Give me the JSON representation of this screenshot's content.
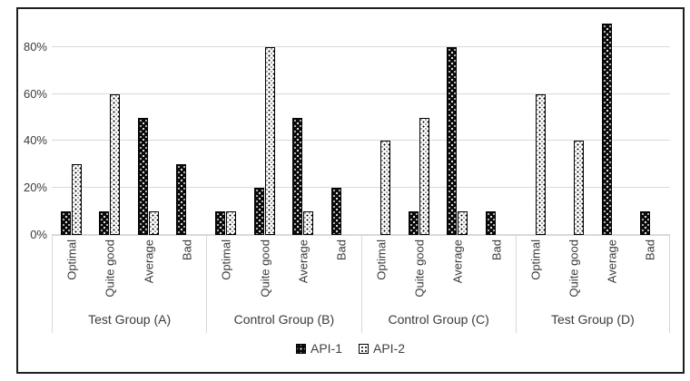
{
  "chart_data": {
    "type": "bar",
    "title": "",
    "categories": [
      "Optimal",
      "Quite good",
      "Average",
      "Bad"
    ],
    "series": [
      {
        "name": "API-1",
        "pattern": "black-with-white-dots"
      },
      {
        "name": "API-2",
        "pattern": "white-with-black-dots"
      }
    ],
    "groups": [
      {
        "label": "Test Group (A)",
        "values": {
          "API-1": [
            10,
            10,
            50,
            30
          ],
          "API-2": [
            30,
            60,
            10,
            0
          ]
        }
      },
      {
        "label": "Control Group (B)",
        "values": {
          "API-1": [
            10,
            20,
            50,
            20
          ],
          "API-2": [
            10,
            80,
            10,
            0
          ]
        }
      },
      {
        "label": "Control Group (C)",
        "values": {
          "API-1": [
            0,
            10,
            80,
            10
          ],
          "API-2": [
            40,
            50,
            10,
            0
          ]
        }
      },
      {
        "label": "Test Group (D)",
        "values": {
          "API-1": [
            0,
            0,
            90,
            10
          ],
          "API-2": [
            60,
            40,
            0,
            0
          ]
        }
      }
    ],
    "y_axis": {
      "unit": "%",
      "tick_values": [
        0,
        20,
        40,
        60,
        80
      ],
      "tick_labels": [
        "0%",
        "20%",
        "40%",
        "60%",
        "80%"
      ],
      "max": 90
    },
    "legend": {
      "position": "bottom",
      "entries": [
        "API-1",
        "API-2"
      ]
    },
    "grid": true
  },
  "colors": {
    "frame_border": "#1f1f1f",
    "gridline": "#d9d9d9",
    "axis_text": "#3b3b3b",
    "series1_fill": "#0a0a0a",
    "series2_fill": "#ffffff",
    "background": "#ffffff"
  }
}
